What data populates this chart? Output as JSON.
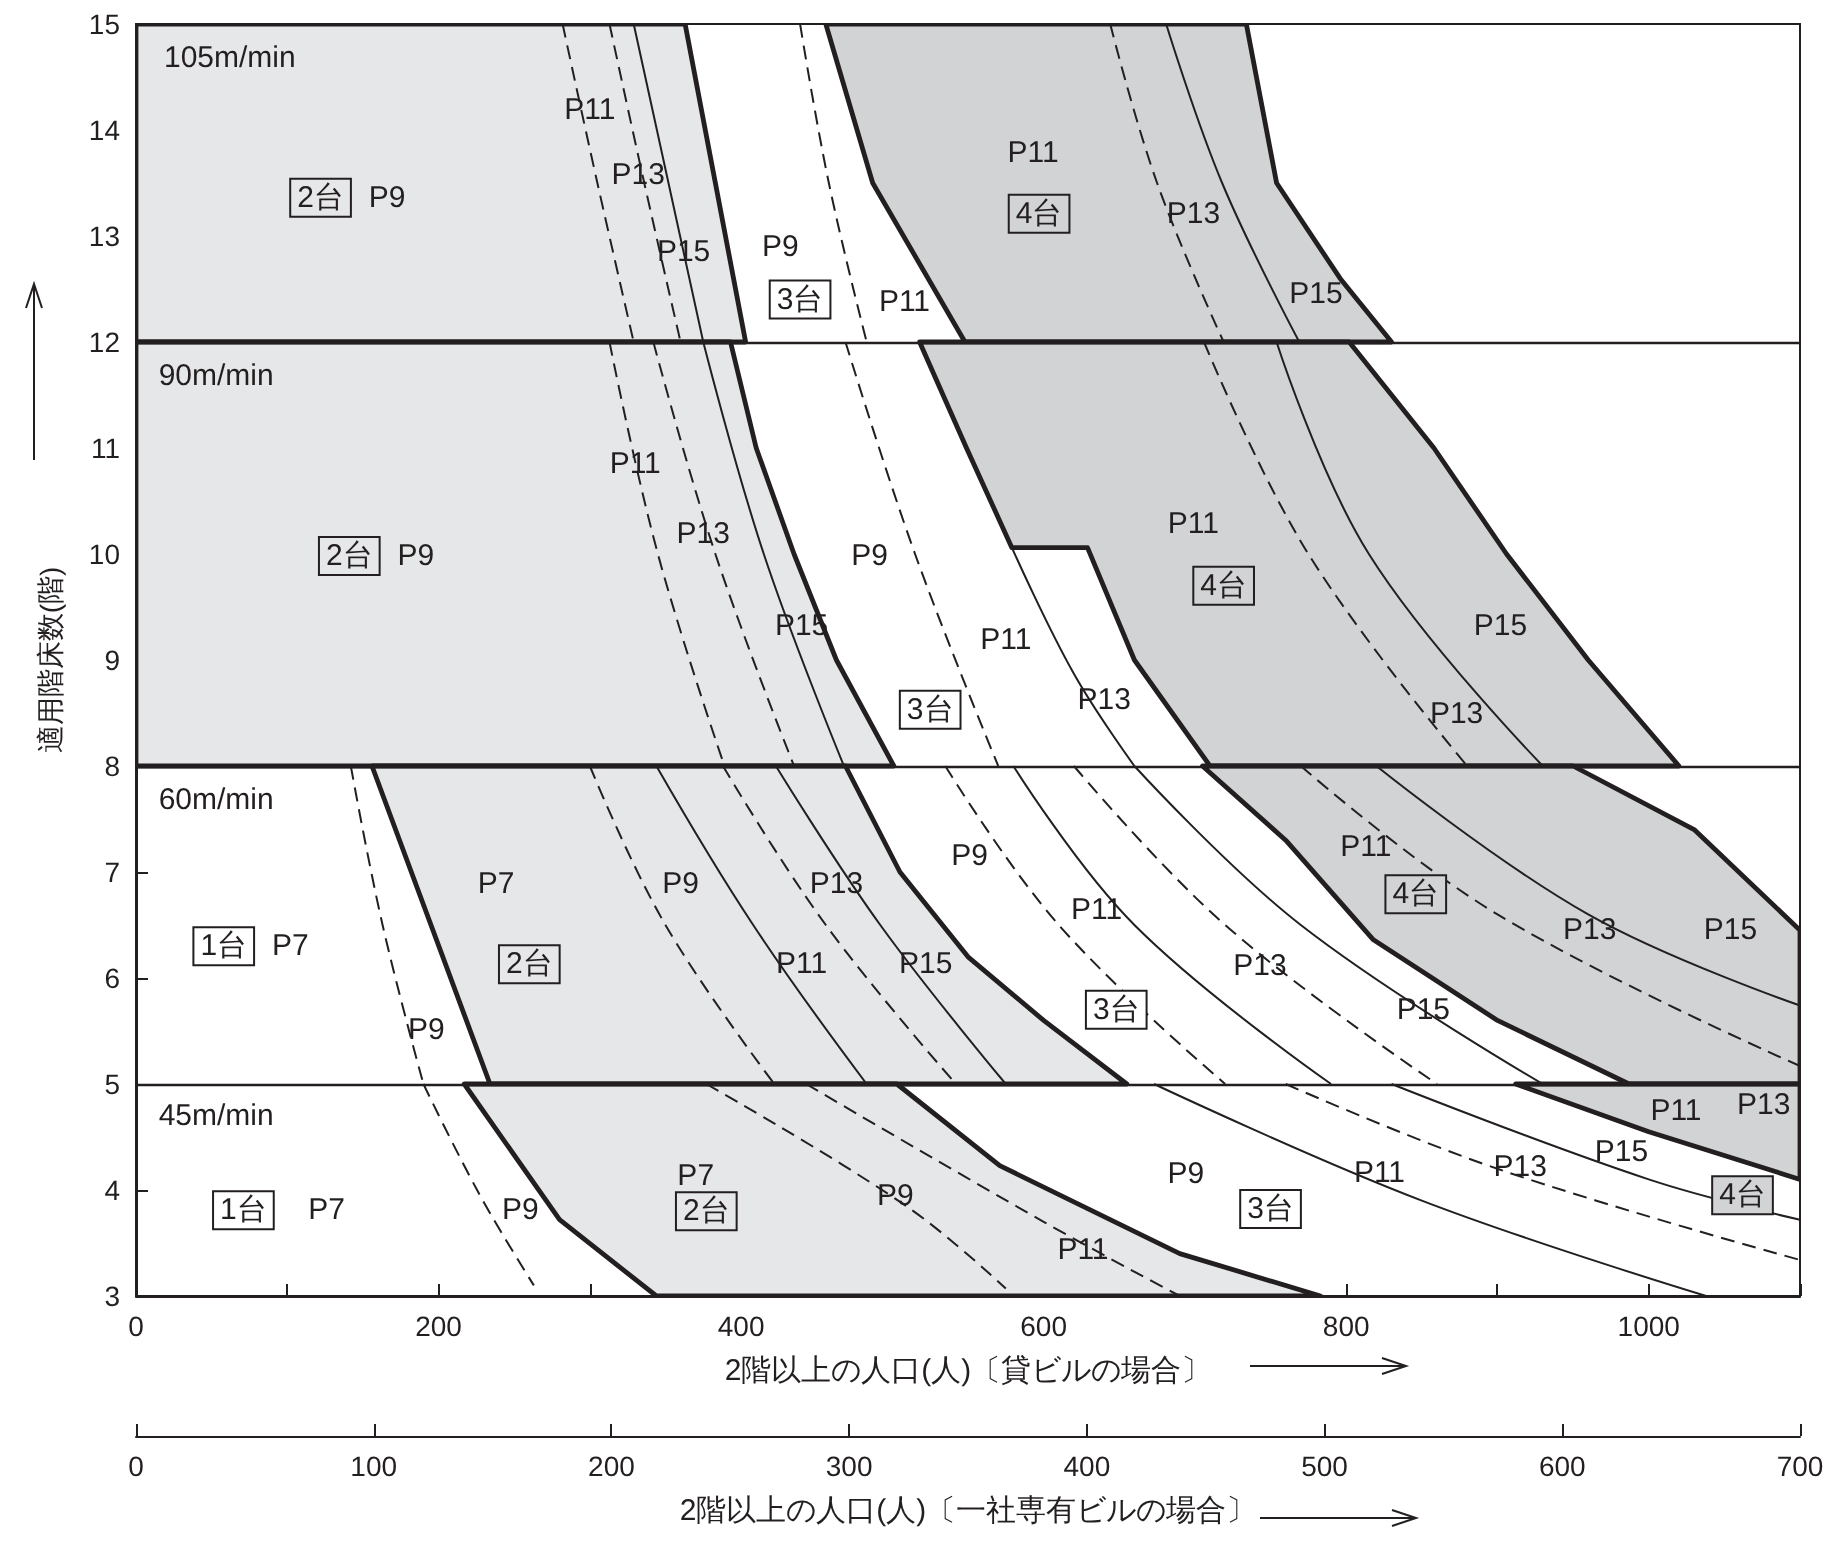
{
  "chart_data": {
    "type": "line",
    "xlabel": "2階以上の人口(人)〔貸ビルの場合〕",
    "ylabel": "適用階床数(階)",
    "x2label": "2階以上の人口(人)〔一社専有ビルの場合〕",
    "xlim": [
      0,
      1100
    ],
    "xticks": [
      0,
      {
        "value": 100,
        "label": null
      },
      200,
      {
        "value": 300,
        "label": null
      },
      400,
      {
        "value": 500,
        "label": null
      },
      600,
      {
        "value": 700,
        "label": null
      },
      800,
      {
        "value": 900,
        "label": null
      },
      1000,
      {
        "value": 1100,
        "label": null
      }
    ],
    "x2lim": [
      0,
      700
    ],
    "x2ticks": [
      0,
      100,
      200,
      300,
      400,
      500,
      600,
      700
    ],
    "ylim": [
      3,
      15
    ],
    "yticks": [
      3,
      4,
      5,
      6,
      7,
      8,
      9,
      10,
      11,
      12,
      13,
      14,
      15
    ],
    "ref_lines": [
      {
        "axis": "y",
        "value": 5,
        "color": "#231f20"
      },
      {
        "axis": "y",
        "value": 8,
        "color": "#231f20"
      },
      {
        "axis": "y",
        "value": 12,
        "color": "#231f20"
      }
    ],
    "series": [
      {
        "type": "area",
        "color": "#e6e7e8",
        "x": [
          0,
          0,
          363,
          383,
          403
        ],
        "values": [
          12,
          15,
          15,
          13.5,
          12
        ]
      },
      {
        "type": "area",
        "color": "#d1d3d4",
        "x": [
          456,
          487,
          548,
          830,
          796,
          754,
          734
        ],
        "values": [
          15,
          13.5,
          12,
          12,
          12.6,
          13.5,
          15
        ]
      },
      {
        "type": "area",
        "color": "#e6e7e8",
        "x": [
          0,
          0,
          393,
          410,
          435,
          463,
          501
        ],
        "values": [
          8,
          12,
          12,
          11,
          10,
          9,
          8
        ]
      },
      {
        "type": "area",
        "color": "#d1d3d4",
        "x": [
          518,
          549,
          579,
          629,
          660,
          710,
          1020,
          960,
          906,
          858,
          802
        ],
        "values": [
          12,
          11,
          10.06,
          10.06,
          9,
          8,
          8,
          9,
          10,
          11,
          12
        ]
      },
      {
        "type": "area",
        "color": "#e6e7e8",
        "x": [
          156,
          469,
          505,
          550,
          600,
          655,
          234
        ],
        "values": [
          8,
          8,
          7,
          6.2,
          5.6,
          5,
          5
        ]
      },
      {
        "type": "area",
        "color": "#d1d3d4",
        "x": [
          705,
          950,
          1030,
          1100,
          1100,
          987,
          900,
          818,
          760
        ],
        "values": [
          8,
          8,
          7.4,
          6.45,
          5,
          5,
          5.6,
          6.36,
          7.3
        ]
      },
      {
        "type": "area",
        "color": "#e6e7e8",
        "x": [
          217,
          503,
          571,
          690,
          783,
          344,
          280
        ],
        "values": [
          5,
          5,
          4.23,
          3.4,
          3,
          3,
          3.72
        ]
      },
      {
        "type": "area",
        "color": "#d1d3d4",
        "x": [
          912,
          1100,
          1100,
          1000
        ],
        "values": [
          5,
          5,
          4.1,
          4.55
        ]
      },
      {
        "color": "#231f20",
        "line_style": "dashed",
        "x": [
          282,
          305,
          329
        ],
        "values": [
          15,
          13.5,
          12
        ]
      },
      {
        "color": "#231f20",
        "line_style": "dashed",
        "x": [
          313,
          336,
          360
        ],
        "values": [
          15,
          13.5,
          12
        ]
      },
      {
        "color": "#231f20",
        "line_style": "solid",
        "x": [
          329,
          352,
          375
        ],
        "values": [
          15,
          13.5,
          12
        ]
      },
      {
        "color": "#231f20",
        "line_style": "dashed",
        "x": [
          439,
          458,
          483
        ],
        "values": [
          15,
          13.5,
          12
        ]
      },
      {
        "color": "#231f20",
        "line_style": "dashed",
        "x": [
          644,
          675,
          719
        ],
        "values": [
          15,
          13.5,
          12
        ]
      },
      {
        "color": "#231f20",
        "line_style": "solid",
        "x": [
          681,
          718,
          769
        ],
        "values": [
          15,
          13.5,
          12
        ]
      },
      {
        "color": "#231f20",
        "line_style": "dashed",
        "x": [
          313,
          345,
          389
        ],
        "values": [
          12,
          10,
          8
        ]
      },
      {
        "color": "#231f20",
        "line_style": "dashed",
        "x": [
          342,
          383,
          435
        ],
        "values": [
          12,
          10,
          8
        ]
      },
      {
        "color": "#231f20",
        "line_style": "solid",
        "x": [
          375,
          415,
          468
        ],
        "values": [
          12,
          10,
          8
        ]
      },
      {
        "color": "#231f20",
        "line_style": "dashed",
        "x": [
          469,
          515,
          570
        ],
        "values": [
          12,
          10,
          8
        ]
      },
      {
        "color": "#231f20",
        "line_style": "solid",
        "x": [
          579,
          620,
          660
        ],
        "values": [
          10.06,
          8.87,
          8
        ]
      },
      {
        "color": "#231f20",
        "line_style": "dashed",
        "x": [
          706,
          775,
          880
        ],
        "values": [
          12,
          10,
          8
        ]
      },
      {
        "color": "#231f20",
        "line_style": "solid",
        "x": [
          754,
          815,
          930
        ],
        "values": [
          12,
          10,
          8
        ]
      },
      {
        "color": "#231f20",
        "line_style": "dashed",
        "x": [
          142,
          163,
          190
        ],
        "values": [
          8,
          6.5,
          5
        ]
      },
      {
        "color": "#231f20",
        "line_style": "dashed",
        "x": [
          300,
          350,
          422
        ],
        "values": [
          8,
          6.5,
          5
        ]
      },
      {
        "color": "#231f20",
        "line_style": "solid",
        "x": [
          344,
          408,
          483
        ],
        "values": [
          8,
          6.5,
          5
        ]
      },
      {
        "color": "#231f20",
        "line_style": "dashed",
        "x": [
          388,
          456,
          542
        ],
        "values": [
          8,
          6.5,
          5
        ]
      },
      {
        "color": "#231f20",
        "line_style": "solid",
        "x": [
          423,
          492,
          575
        ],
        "values": [
          8,
          6.5,
          5
        ]
      },
      {
        "color": "#231f20",
        "line_style": "dashed",
        "x": [
          535,
          610,
          720
        ],
        "values": [
          8,
          6.5,
          5
        ]
      },
      {
        "color": "#231f20",
        "line_style": "solid",
        "x": [
          580,
          660,
          790
        ],
        "values": [
          8,
          6.5,
          5
        ]
      },
      {
        "color": "#231f20",
        "line_style": "dashed",
        "x": [
          620,
          720,
          860
        ],
        "values": [
          8,
          6.5,
          5
        ]
      },
      {
        "color": "#231f20",
        "line_style": "solid",
        "x": [
          660,
          770,
          930
        ],
        "values": [
          8,
          6.5,
          5
        ]
      },
      {
        "color": "#231f20",
        "line_style": "dashed",
        "x": [
          770,
          900,
          1100
        ],
        "values": [
          8,
          6.6,
          5.17
        ]
      },
      {
        "color": "#231f20",
        "line_style": "solid",
        "x": [
          820,
          960,
          1100
        ],
        "values": [
          8,
          6.6,
          5.74
        ]
      },
      {
        "color": "#231f20",
        "line_style": "dashed",
        "x": [
          190,
          227,
          263
        ],
        "values": [
          5,
          3.96,
          3.1
        ]
      },
      {
        "color": "#231f20",
        "line_style": "dashed",
        "x": [
          377,
          509,
          575
        ],
        "values": [
          5,
          3.85,
          3.07
        ]
      },
      {
        "color": "#231f20",
        "line_style": "dashed",
        "x": [
          443,
          600,
          690
        ],
        "values": [
          5,
          3.7,
          3
        ]
      },
      {
        "color": "#231f20",
        "line_style": "solid",
        "x": [
          673,
          850,
          1038
        ],
        "values": [
          5,
          3.9,
          3
        ]
      },
      {
        "color": "#231f20",
        "line_style": "dashed",
        "x": [
          760,
          900,
          1100
        ],
        "values": [
          5,
          4.2,
          3.34
        ]
      },
      {
        "color": "#231f20",
        "line_style": "solid",
        "x": [
          830,
          1000,
          1100
        ],
        "values": [
          5,
          4.1,
          3.72
        ]
      }
    ],
    "annotations": [
      "105m/min",
      "2台",
      "P9",
      "P11",
      "P13",
      "P15",
      "P9",
      "3台",
      "P11",
      "P11",
      "4台",
      "P13",
      "P15",
      "90m/min",
      "2台",
      "P9",
      "P11",
      "P13",
      "P15",
      "P9",
      "P11",
      "3台",
      "P13",
      "P11",
      "4台",
      "P15",
      "P13",
      "60m/min",
      "1台",
      "P7",
      "P9",
      "P7",
      "2台",
      "P9",
      "P13",
      "P11",
      "P15",
      "P9",
      "P11",
      "3台",
      "P13",
      "P15",
      "P11",
      "4台",
      "P13",
      "P15",
      "45m/min",
      "1台",
      "P7",
      "P9",
      "P7",
      "2台",
      "P9",
      "P11",
      "P9",
      "3台",
      "P11",
      "P13",
      "P15",
      "P11",
      "P13",
      "4台"
    ]
  }
}
